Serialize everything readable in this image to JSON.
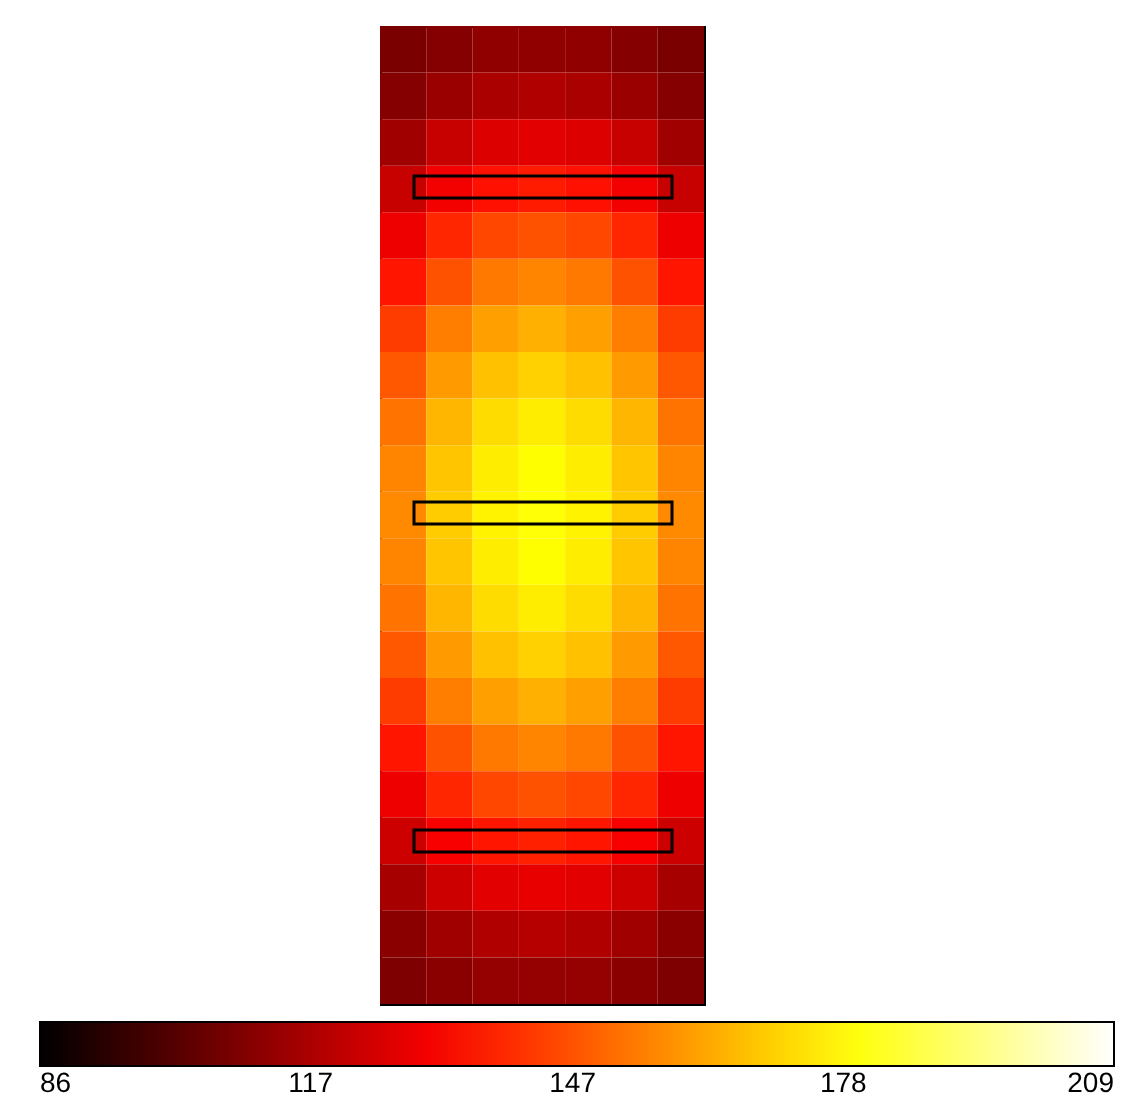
{
  "chart_data": {
    "type": "heatmap",
    "categories": [
      null,
      null,
      null,
      null,
      null,
      null,
      null
    ],
    "y_categories": [
      null,
      null,
      null,
      null,
      null,
      null,
      null,
      null,
      null,
      null,
      null,
      null,
      null,
      null,
      null,
      null,
      null,
      null,
      null,
      null,
      null
    ],
    "cells": [
      [
        108,
        110,
        112,
        112,
        112,
        110,
        108
      ],
      [
        110,
        114,
        117,
        118,
        117,
        114,
        110
      ],
      [
        115,
        122,
        126,
        127,
        126,
        122,
        115
      ],
      [
        122,
        130,
        135,
        137,
        135,
        130,
        122
      ],
      [
        129,
        139,
        145,
        147,
        145,
        139,
        129
      ],
      [
        136,
        147,
        154,
        156,
        154,
        147,
        136
      ],
      [
        143,
        155,
        161,
        164,
        161,
        155,
        143
      ],
      [
        148,
        160,
        167,
        170,
        167,
        160,
        148
      ],
      [
        153,
        165,
        172,
        175,
        172,
        165,
        153
      ],
      [
        156,
        168,
        175,
        178,
        175,
        168,
        156
      ],
      [
        157,
        169,
        176,
        179,
        176,
        169,
        157
      ],
      [
        156,
        168,
        175,
        178,
        175,
        168,
        156
      ],
      [
        153,
        165,
        172,
        175,
        172,
        165,
        153
      ],
      [
        148,
        160,
        167,
        170,
        167,
        160,
        148
      ],
      [
        143,
        155,
        161,
        164,
        161,
        155,
        143
      ],
      [
        136,
        147,
        154,
        156,
        154,
        147,
        136
      ],
      [
        129,
        139,
        145,
        147,
        145,
        139,
        129
      ],
      [
        123,
        131,
        136,
        138,
        136,
        131,
        123
      ],
      [
        116,
        123,
        127,
        128,
        127,
        123,
        116
      ],
      [
        111,
        115,
        118,
        119,
        118,
        115,
        111
      ],
      [
        109,
        111,
        113,
        113,
        113,
        111,
        109
      ]
    ],
    "clim": [
      86,
      209
    ],
    "cticks": [
      86,
      117,
      147,
      178,
      209
    ]
  }
}
